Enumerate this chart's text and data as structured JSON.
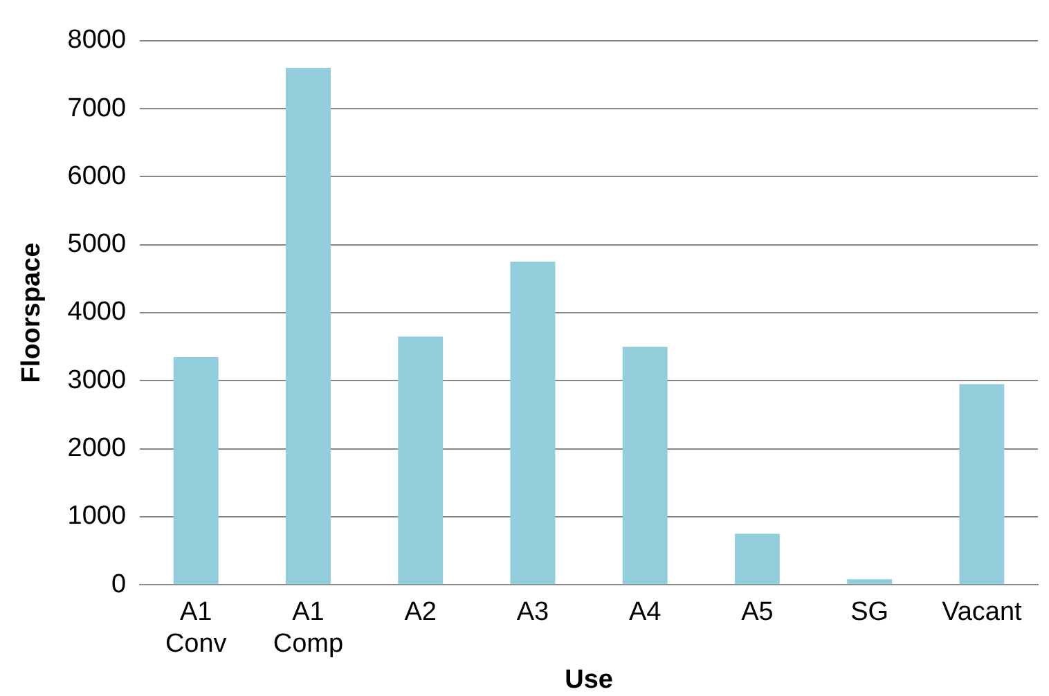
{
  "chart_data": {
    "type": "bar",
    "xlabel": "Use",
    "ylabel": "Floorspace",
    "categories": [
      "A1 Conv",
      "A1 Comp",
      "A2",
      "A3",
      "A4",
      "A5",
      "SG",
      "Vacant"
    ],
    "values": [
      3350,
      7600,
      3650,
      4750,
      3500,
      750,
      80,
      2950
    ],
    "color": "#92cddc",
    "ylim": [
      0,
      8000
    ],
    "yticks": [
      0,
      1000,
      2000,
      3000,
      4000,
      5000,
      6000,
      7000,
      8000
    ],
    "grid": "y"
  }
}
